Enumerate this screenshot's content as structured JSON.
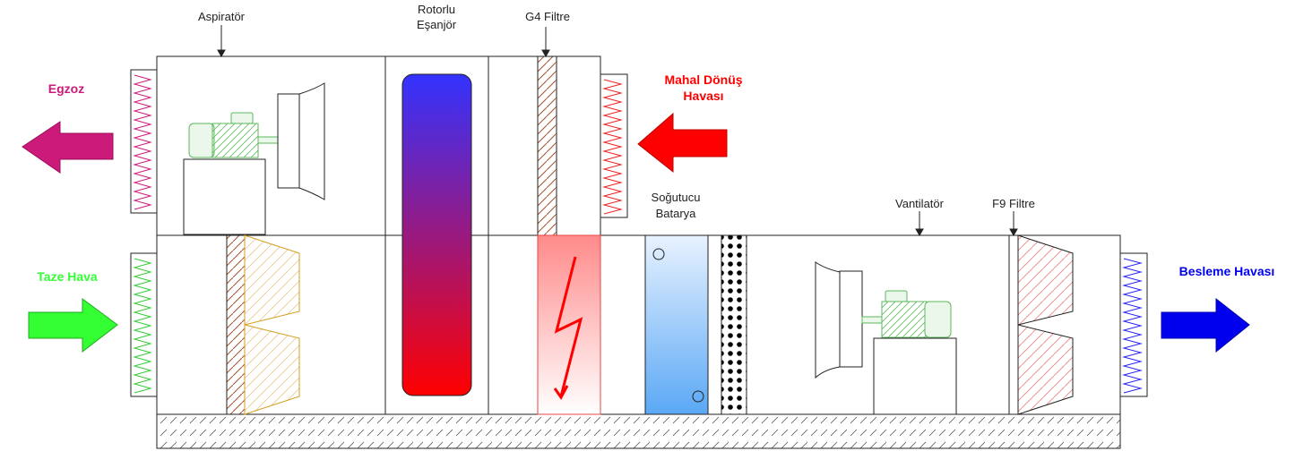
{
  "labels": {
    "aspirator": "Aspiratör",
    "rotor_line1": "Rotorlu",
    "rotor_line2": "Eşanjör",
    "g4_filter": "G4 Filtre",
    "cooling_line1": "Soğutucu",
    "cooling_line2": "Batarya",
    "fan": "Vantilatör",
    "f9_filter": "F9 Filtre"
  },
  "flows": {
    "exhaust": "Egzoz",
    "return_line1": "Mahal Dönüş",
    "return_line2": "Havası",
    "fresh": "Taze Hava",
    "supply": "Besleme Havası"
  },
  "colors": {
    "exhaust": "#cc1a7a",
    "return": "#ff0000",
    "fresh": "#33ff33",
    "supply": "#0000ee",
    "rotor_top": "#3333ff",
    "rotor_bottom": "#ff0000",
    "coil_top": "#e8f2ff",
    "coil_bottom": "#5aa8f5",
    "heater_top": "#ff8a8a",
    "heater_bottom": "#ffffff"
  }
}
